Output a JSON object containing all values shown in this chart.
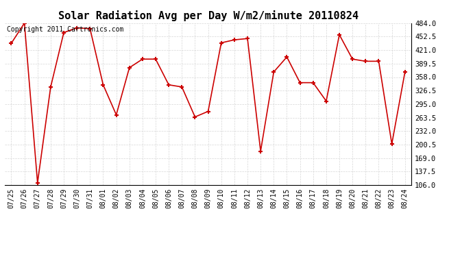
{
  "title": "Solar Radiation Avg per Day W/m2/minute 20110824",
  "copyright": "Copyright 2011 Cartronics.com",
  "dates": [
    "07/25",
    "07/26",
    "07/27",
    "07/28",
    "07/29",
    "07/30",
    "07/31",
    "08/01",
    "08/02",
    "08/03",
    "08/04",
    "08/05",
    "08/06",
    "08/07",
    "08/08",
    "08/09",
    "08/10",
    "08/11",
    "08/12",
    "08/13",
    "08/14",
    "08/15",
    "08/16",
    "08/17",
    "08/18",
    "08/19",
    "08/20",
    "08/21",
    "08/22",
    "08/23",
    "08/24"
  ],
  "values": [
    437,
    484,
    111,
    335,
    462,
    473,
    471,
    340,
    270,
    380,
    400,
    400,
    340,
    335,
    265,
    278,
    438,
    445,
    448,
    185,
    370,
    405,
    345,
    345,
    302,
    457,
    400,
    395,
    395,
    202,
    370
  ],
  "line_color": "#cc0000",
  "marker_color": "#cc0000",
  "bg_color": "#ffffff",
  "grid_color": "#cccccc",
  "ylim_min": 106.0,
  "ylim_max": 484.0,
  "yticks": [
    106.0,
    137.5,
    169.0,
    200.5,
    232.0,
    263.5,
    295.0,
    326.5,
    358.0,
    389.5,
    421.0,
    452.5,
    484.0
  ],
  "title_fontsize": 11,
  "copyright_fontsize": 7,
  "tick_fontsize": 7,
  "ytick_fontsize": 7.5
}
